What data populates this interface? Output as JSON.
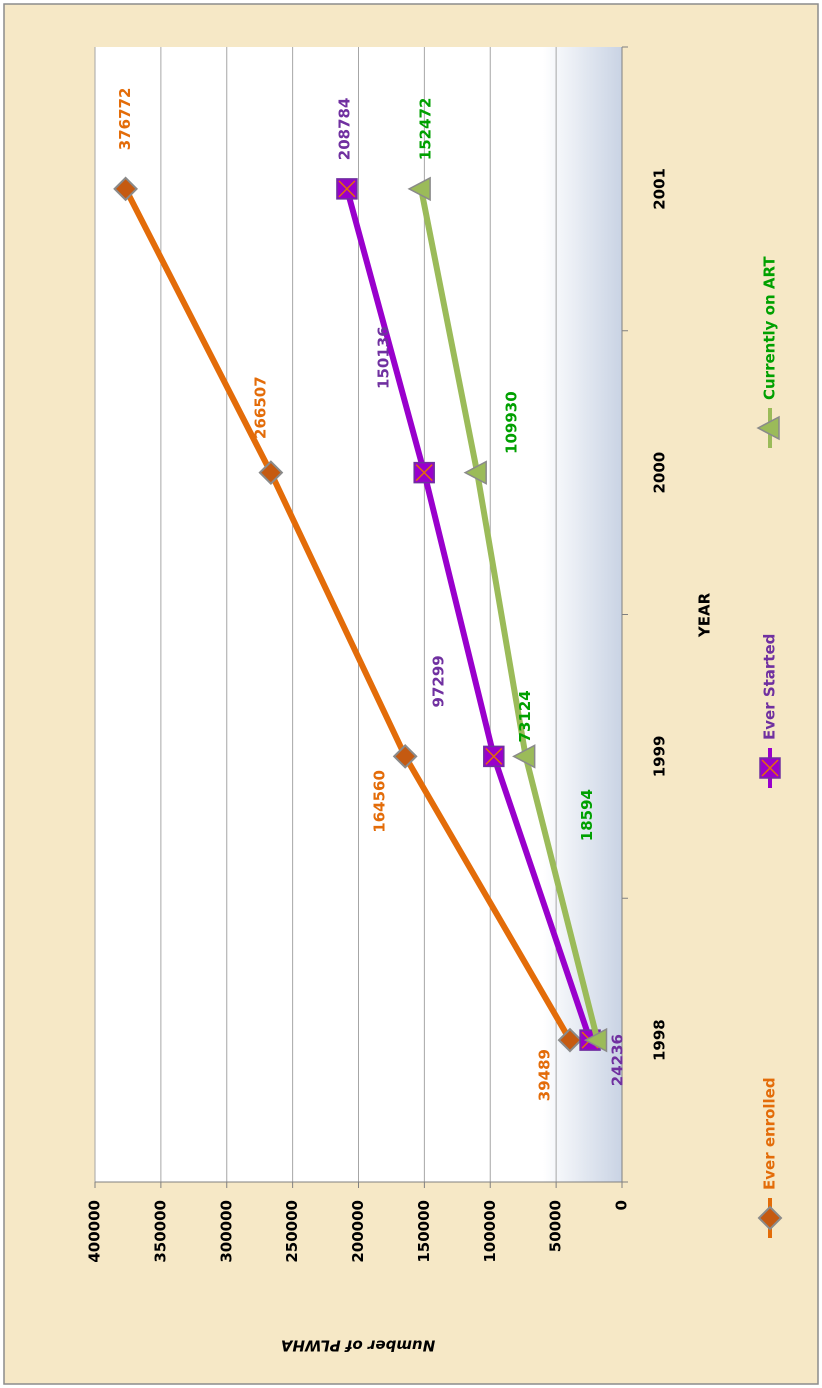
{
  "chart_data": {
    "type": "line",
    "x_label": "YEAR",
    "y_label": "Number of PLWHA",
    "categories": [
      "1998",
      "1999",
      "2000",
      "2001"
    ],
    "series": [
      {
        "name": "Ever enrolled",
        "color": "#e36c09",
        "label_color": "#e36c09",
        "marker": "diamond",
        "values": [
          39489,
          164560,
          266507,
          376772
        ]
      },
      {
        "name": "Ever Started",
        "color": "#9900cc",
        "label_color": "#7030a0",
        "marker": "square",
        "values": [
          24236,
          97299,
          150136,
          208784
        ]
      },
      {
        "name": "Currently on ART",
        "color": "#9bbb59",
        "label_color": "#00a000",
        "marker": "triangle",
        "values": [
          18594,
          73124,
          109930,
          152472
        ]
      }
    ],
    "ylim": [
      0,
      400000
    ],
    "yticks": [
      0,
      50000,
      100000,
      150000,
      200000,
      250000,
      300000,
      350000,
      400000
    ],
    "grid": true,
    "legend": "bottom"
  }
}
